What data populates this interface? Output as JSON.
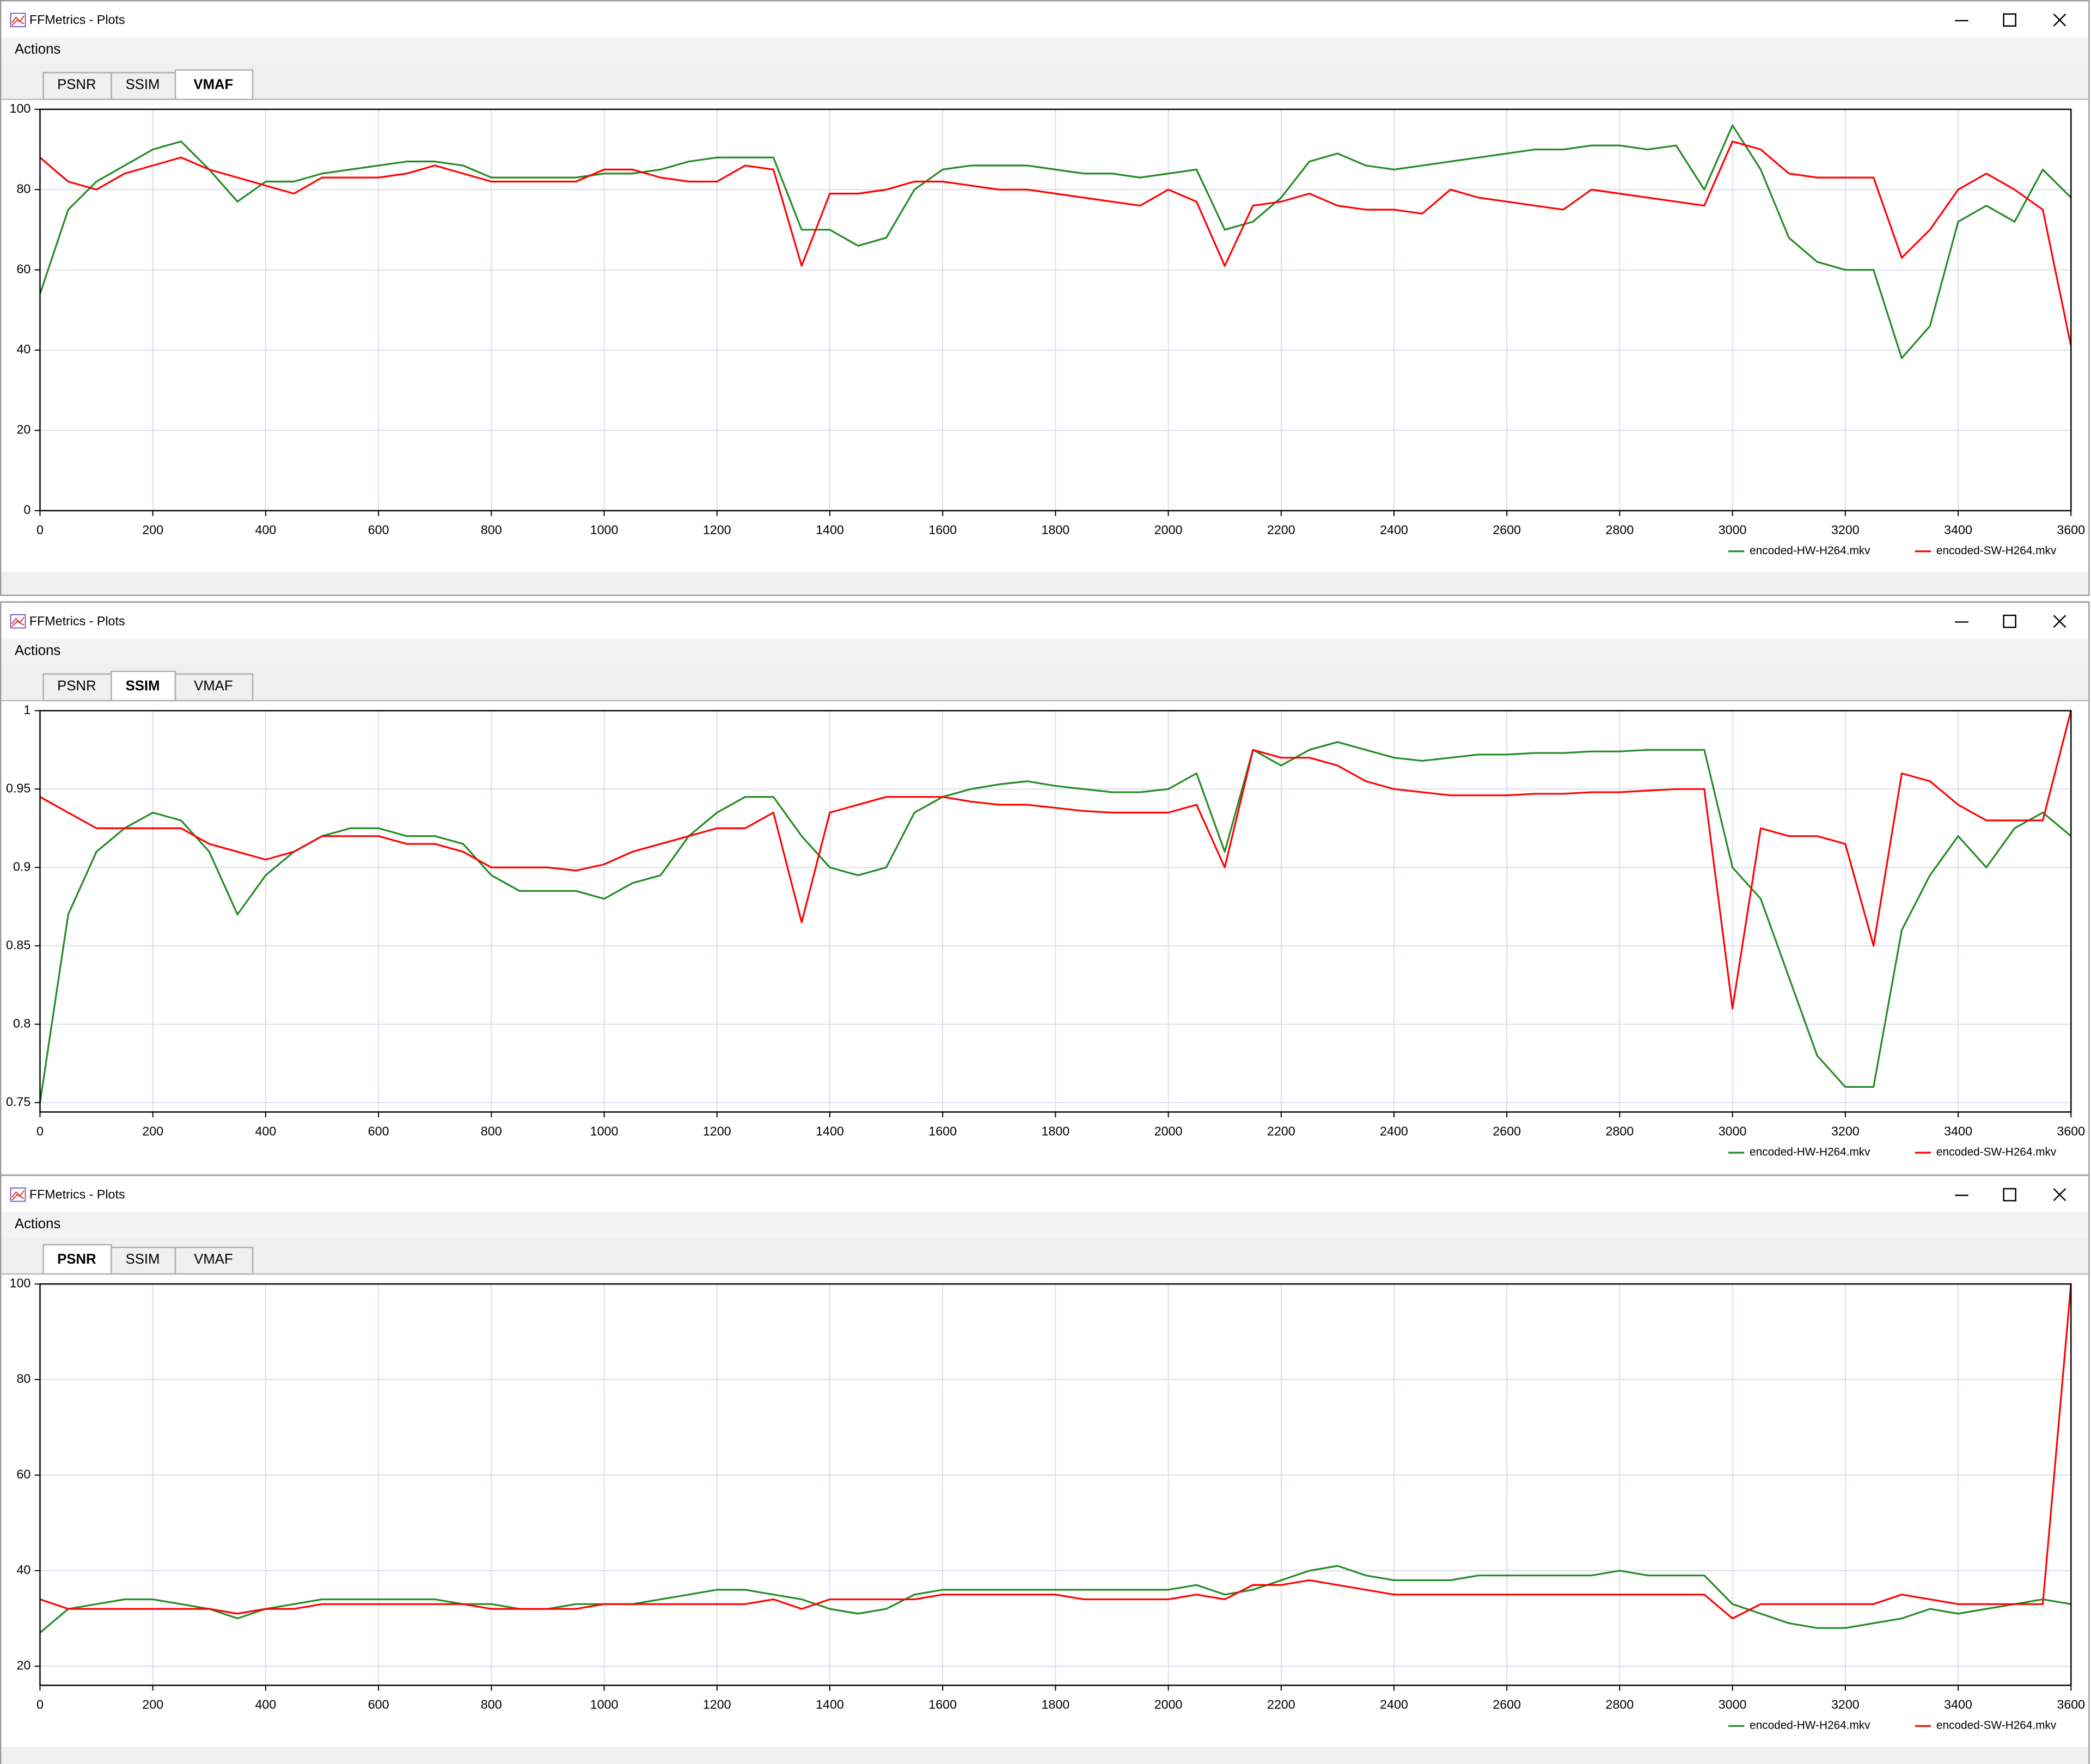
{
  "windows": [
    {
      "title": "FFMetrics - Plots",
      "menu": "Actions",
      "tabs": [
        "PSNR",
        "SSIM",
        "VMAF"
      ],
      "active_tab": "VMAF"
    },
    {
      "title": "FFMetrics - Plots",
      "menu": "Actions",
      "tabs": [
        "PSNR",
        "SSIM",
        "VMAF"
      ],
      "active_tab": "SSIM"
    },
    {
      "title": "FFMetrics - Plots",
      "menu": "Actions",
      "tabs": [
        "PSNR",
        "SSIM",
        "VMAF"
      ],
      "active_tab": "PSNR"
    }
  ],
  "chart_data": [
    {
      "type": "line",
      "grid": true,
      "legend": "bottom-right",
      "x": [
        0,
        50,
        100,
        150,
        200,
        250,
        300,
        350,
        400,
        450,
        500,
        550,
        600,
        650,
        700,
        750,
        800,
        850,
        900,
        950,
        1000,
        1050,
        1100,
        1150,
        1200,
        1250,
        1300,
        1350,
        1400,
        1450,
        1500,
        1550,
        1600,
        1650,
        1700,
        1750,
        1800,
        1850,
        1900,
        1950,
        2000,
        2050,
        2100,
        2150,
        2200,
        2250,
        2300,
        2350,
        2400,
        2450,
        2500,
        2550,
        2600,
        2650,
        2700,
        2750,
        2800,
        2850,
        2900,
        2950,
        3000,
        3050,
        3100,
        3150,
        3200,
        3250,
        3300,
        3350,
        3400,
        3450,
        3500,
        3550,
        3600
      ],
      "xlim": [
        0,
        3600
      ],
      "xticks": [
        0,
        200,
        400,
        600,
        800,
        1000,
        1200,
        1400,
        1600,
        1800,
        2000,
        2200,
        2400,
        2600,
        2800,
        3000,
        3200,
        3400,
        3600
      ],
      "ylim": [
        0,
        100
      ],
      "yticks": [
        0,
        20,
        40,
        60,
        80,
        100
      ],
      "series": [
        {
          "name": "encoded-HW-H264.mkv",
          "color": "#228b22",
          "values": [
            54,
            75,
            82,
            86,
            90,
            92,
            85,
            77,
            82,
            82,
            84,
            85,
            86,
            87,
            87,
            86,
            83,
            83,
            83,
            83,
            84,
            84,
            85,
            87,
            88,
            88,
            88,
            70,
            70,
            66,
            68,
            80,
            85,
            86,
            86,
            86,
            85,
            84,
            84,
            83,
            84,
            85,
            70,
            72,
            78,
            87,
            89,
            86,
            85,
            86,
            87,
            88,
            89,
            90,
            90,
            91,
            91,
            90,
            91,
            80,
            96,
            85,
            68,
            62,
            60,
            60,
            38,
            46,
            72,
            76,
            72,
            85,
            78
          ]
        },
        {
          "name": "encoded-SW-H264.mkv",
          "color": "#ff0000",
          "values": [
            88,
            82,
            80,
            84,
            86,
            88,
            85,
            83,
            81,
            79,
            83,
            83,
            83,
            84,
            86,
            84,
            82,
            82,
            82,
            82,
            85,
            85,
            83,
            82,
            82,
            86,
            85,
            61,
            79,
            79,
            80,
            82,
            82,
            81,
            80,
            80,
            79,
            78,
            77,
            76,
            80,
            77,
            61,
            76,
            77,
            79,
            76,
            75,
            75,
            74,
            80,
            78,
            77,
            76,
            75,
            80,
            79,
            78,
            77,
            76,
            92,
            90,
            84,
            83,
            83,
            83,
            63,
            70,
            80,
            84,
            80,
            75,
            41
          ]
        }
      ]
    },
    {
      "type": "line",
      "grid": true,
      "legend": "bottom-right",
      "x": [
        0,
        50,
        100,
        150,
        200,
        250,
        300,
        350,
        400,
        450,
        500,
        550,
        600,
        650,
        700,
        750,
        800,
        850,
        900,
        950,
        1000,
        1050,
        1100,
        1150,
        1200,
        1250,
        1300,
        1350,
        1400,
        1450,
        1500,
        1550,
        1600,
        1650,
        1700,
        1750,
        1800,
        1850,
        1900,
        1950,
        2000,
        2050,
        2100,
        2150,
        2200,
        2250,
        2300,
        2350,
        2400,
        2450,
        2500,
        2550,
        2600,
        2650,
        2700,
        2750,
        2800,
        2850,
        2900,
        2950,
        3000,
        3050,
        3100,
        3150,
        3200,
        3250,
        3300,
        3350,
        3400,
        3450,
        3500,
        3550,
        3600
      ],
      "xlim": [
        0,
        3600
      ],
      "xticks": [
        0,
        200,
        400,
        600,
        800,
        1000,
        1200,
        1400,
        1600,
        1800,
        2000,
        2200,
        2400,
        2600,
        2800,
        3000,
        3200,
        3400,
        3600
      ],
      "ylim": [
        0.744,
        1
      ],
      "yticks": [
        0.75,
        0.8,
        0.85,
        0.9,
        0.95,
        1
      ],
      "series": [
        {
          "name": "encoded-HW-H264.mkv",
          "color": "#228b22",
          "values": [
            0.75,
            0.87,
            0.91,
            0.925,
            0.935,
            0.93,
            0.91,
            0.87,
            0.895,
            0.91,
            0.92,
            0.925,
            0.925,
            0.92,
            0.92,
            0.915,
            0.895,
            0.885,
            0.885,
            0.885,
            0.88,
            0.89,
            0.895,
            0.92,
            0.935,
            0.945,
            0.945,
            0.92,
            0.9,
            0.895,
            0.9,
            0.935,
            0.945,
            0.95,
            0.953,
            0.955,
            0.952,
            0.95,
            0.948,
            0.948,
            0.95,
            0.96,
            0.91,
            0.975,
            0.965,
            0.975,
            0.98,
            0.975,
            0.97,
            0.968,
            0.97,
            0.972,
            0.972,
            0.973,
            0.973,
            0.974,
            0.974,
            0.975,
            0.975,
            0.975,
            0.9,
            0.88,
            0.83,
            0.78,
            0.76,
            0.76,
            0.86,
            0.895,
            0.92,
            0.9,
            0.925,
            0.935,
            0.92
          ]
        },
        {
          "name": "encoded-SW-H264.mkv",
          "color": "#ff0000",
          "values": [
            0.945,
            0.935,
            0.925,
            0.925,
            0.925,
            0.925,
            0.915,
            0.91,
            0.905,
            0.91,
            0.92,
            0.92,
            0.92,
            0.915,
            0.915,
            0.91,
            0.9,
            0.9,
            0.9,
            0.898,
            0.902,
            0.91,
            0.915,
            0.92,
            0.925,
            0.925,
            0.935,
            0.865,
            0.935,
            0.94,
            0.945,
            0.945,
            0.945,
            0.942,
            0.94,
            0.94,
            0.938,
            0.936,
            0.935,
            0.935,
            0.935,
            0.94,
            0.9,
            0.975,
            0.97,
            0.97,
            0.965,
            0.955,
            0.95,
            0.948,
            0.946,
            0.946,
            0.946,
            0.947,
            0.947,
            0.948,
            0.948,
            0.949,
            0.95,
            0.95,
            0.81,
            0.925,
            0.92,
            0.92,
            0.915,
            0.85,
            0.96,
            0.955,
            0.94,
            0.93,
            0.93,
            0.93,
            1
          ]
        }
      ]
    },
    {
      "type": "line",
      "grid": true,
      "legend": "bottom-right",
      "x": [
        0,
        50,
        100,
        150,
        200,
        250,
        300,
        350,
        400,
        450,
        500,
        550,
        600,
        650,
        700,
        750,
        800,
        850,
        900,
        950,
        1000,
        1050,
        1100,
        1150,
        1200,
        1250,
        1300,
        1350,
        1400,
        1450,
        1500,
        1550,
        1600,
        1650,
        1700,
        1750,
        1800,
        1850,
        1900,
        1950,
        2000,
        2050,
        2100,
        2150,
        2200,
        2250,
        2300,
        2350,
        2400,
        2450,
        2500,
        2550,
        2600,
        2650,
        2700,
        2750,
        2800,
        2850,
        2900,
        2950,
        3000,
        3050,
        3100,
        3150,
        3200,
        3250,
        3300,
        3350,
        3400,
        3450,
        3500,
        3550,
        3600
      ],
      "xlim": [
        0,
        3600
      ],
      "xticks": [
        0,
        200,
        400,
        600,
        800,
        1000,
        1200,
        1400,
        1600,
        1800,
        2000,
        2200,
        2400,
        2600,
        2800,
        3000,
        3200,
        3400,
        3600
      ],
      "ylim": [
        16,
        100
      ],
      "yticks": [
        20,
        40,
        60,
        80,
        100
      ],
      "series": [
        {
          "name": "encoded-HW-H264.mkv",
          "color": "#228b22",
          "values": [
            27,
            32,
            33,
            34,
            34,
            33,
            32,
            30,
            32,
            33,
            34,
            34,
            34,
            34,
            34,
            33,
            33,
            32,
            32,
            33,
            33,
            33,
            34,
            35,
            36,
            36,
            35,
            34,
            32,
            31,
            32,
            35,
            36,
            36,
            36,
            36,
            36,
            36,
            36,
            36,
            36,
            37,
            35,
            36,
            38,
            40,
            41,
            39,
            38,
            38,
            38,
            39,
            39,
            39,
            39,
            39,
            40,
            39,
            39,
            39,
            33,
            31,
            29,
            28,
            28,
            29,
            30,
            32,
            31,
            32,
            33,
            34,
            33
          ]
        },
        {
          "name": "encoded-SW-H264.mkv",
          "color": "#ff0000",
          "values": [
            34,
            32,
            32,
            32,
            32,
            32,
            32,
            31,
            32,
            32,
            33,
            33,
            33,
            33,
            33,
            33,
            32,
            32,
            32,
            32,
            33,
            33,
            33,
            33,
            33,
            33,
            34,
            32,
            34,
            34,
            34,
            34,
            35,
            35,
            35,
            35,
            35,
            34,
            34,
            34,
            34,
            35,
            34,
            37,
            37,
            38,
            37,
            36,
            35,
            35,
            35,
            35,
            35,
            35,
            35,
            35,
            35,
            35,
            35,
            35,
            30,
            33,
            33,
            33,
            33,
            33,
            35,
            34,
            33,
            33,
            33,
            33,
            100
          ]
        }
      ]
    }
  ]
}
